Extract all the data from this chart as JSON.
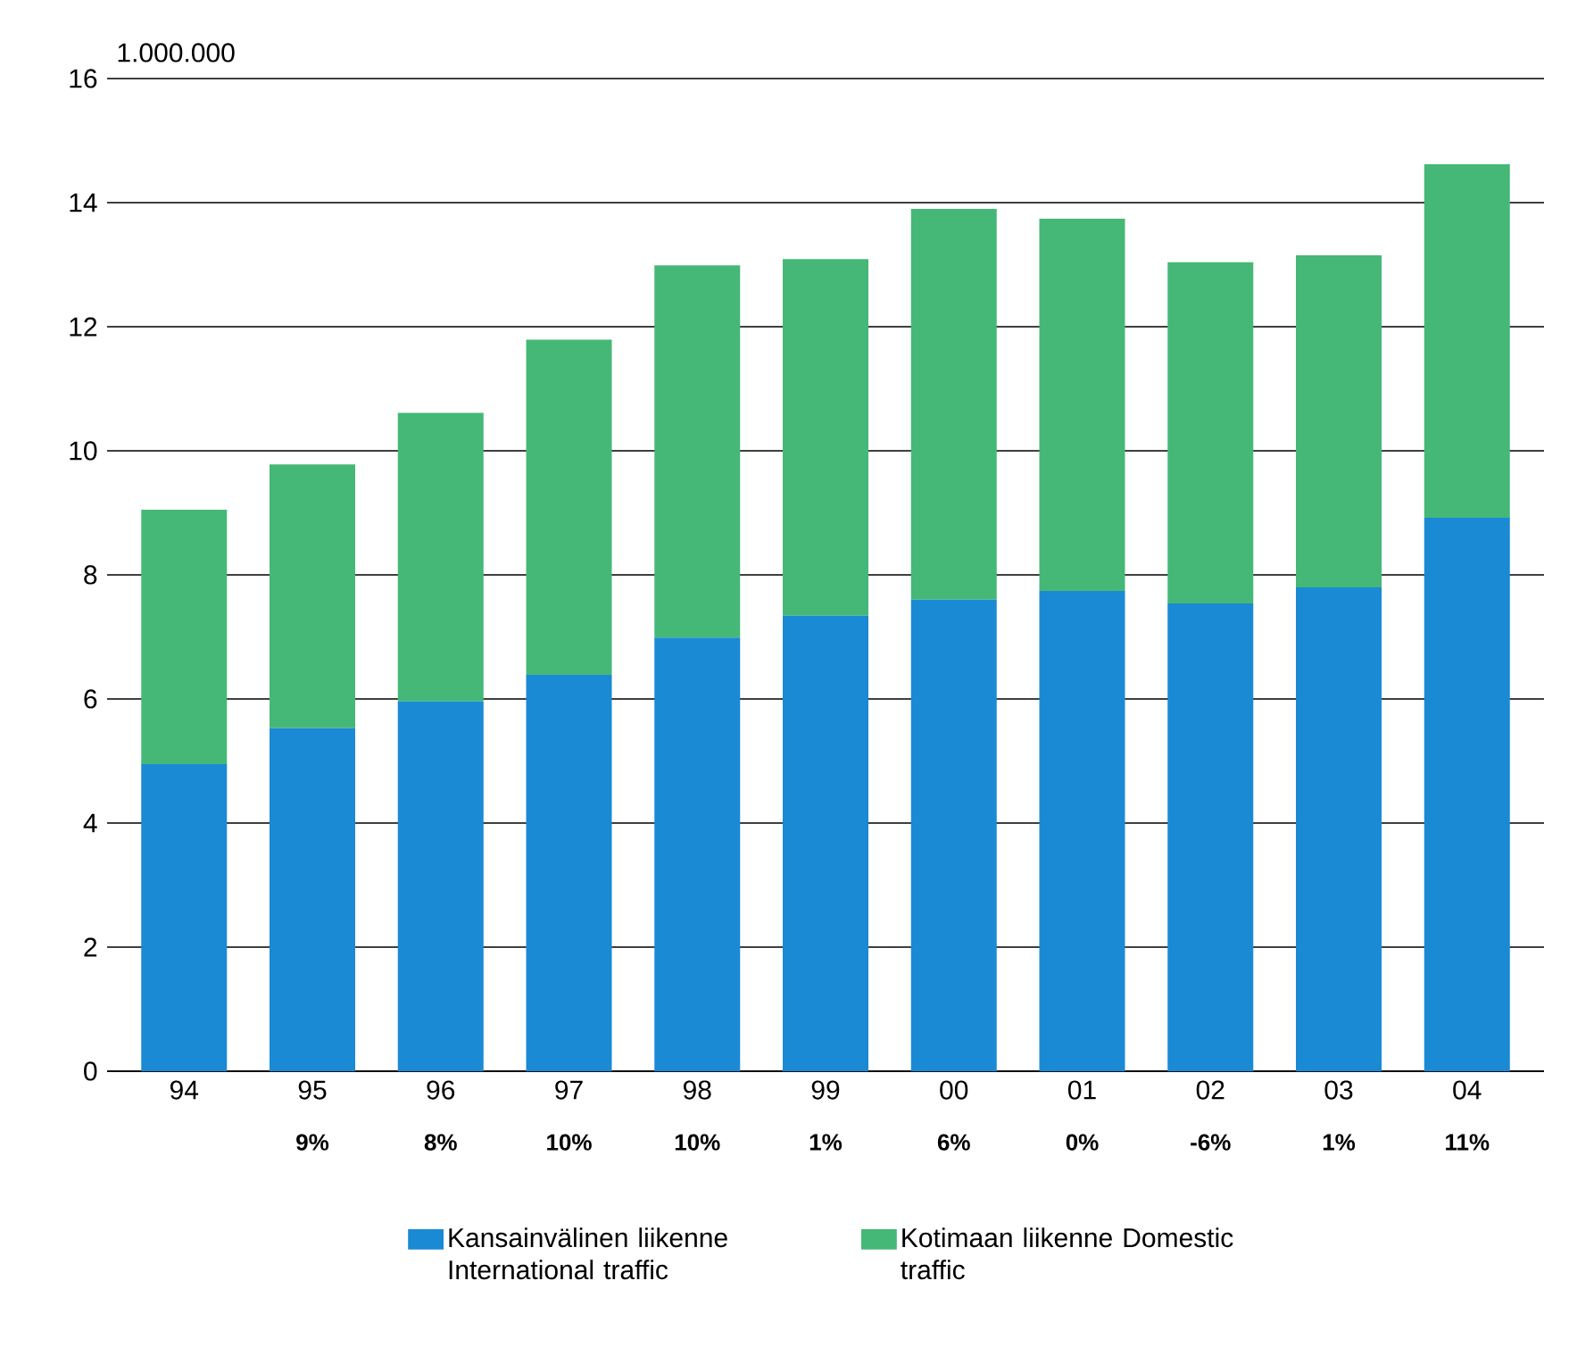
{
  "chart_data": {
    "type": "bar",
    "stacked": true,
    "ylabel": "1.000.000",
    "categories": [
      "94",
      "95",
      "96",
      "97",
      "98",
      "99",
      "00",
      "01",
      "02",
      "03",
      "04"
    ],
    "series": [
      {
        "name": "Kansainvälinen liikenne International traffic",
        "color": "#1a8ad4",
        "values": [
          4.95,
          5.53,
          5.96,
          6.39,
          6.99,
          7.34,
          7.6,
          7.74,
          7.54,
          7.8,
          8.92
        ]
      },
      {
        "name": "Kotimaan liikenne Domestic traffic",
        "color": "#45b877",
        "values": [
          4.1,
          4.25,
          4.65,
          5.4,
          6.0,
          5.75,
          6.3,
          6.0,
          5.5,
          5.35,
          5.7
        ]
      }
    ],
    "ylim": [
      0,
      16
    ],
    "yticks": [
      0,
      2,
      4,
      6,
      8,
      10,
      12,
      14,
      16
    ],
    "grid": "y",
    "legend": "bottom",
    "annotations": [
      "9%",
      "8%",
      "10%",
      "10%",
      "1%",
      "6%",
      "0%",
      "-6%",
      "1%",
      "11%"
    ]
  }
}
